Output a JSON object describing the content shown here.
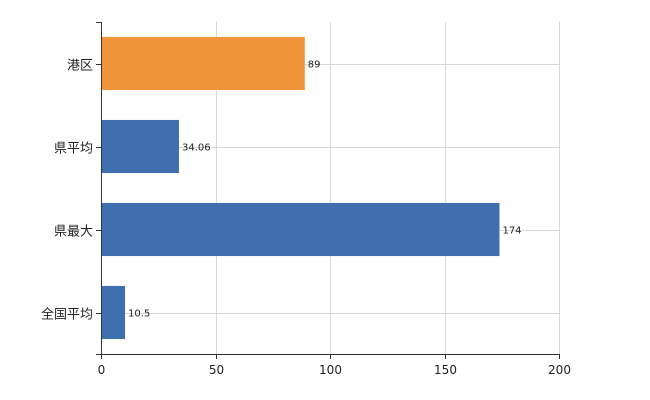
{
  "chart_data": {
    "type": "bar",
    "orientation": "horizontal",
    "categories": [
      "港区",
      "県平均",
      "県最大",
      "全国平均"
    ],
    "values": [
      89,
      34.06,
      174,
      10.5
    ],
    "value_labels": [
      "89",
      "34.06",
      "174",
      "10.5"
    ],
    "bar_colors": [
      "#f0953a",
      "#3f6faf",
      "#3f6faf",
      "#3f6faf"
    ],
    "xlim": [
      0,
      200
    ],
    "xticks": [
      0,
      50,
      100,
      150,
      200
    ],
    "xtick_labels": [
      "0",
      "50",
      "100",
      "150",
      "200"
    ],
    "grid": true,
    "grid_color": "#d9d9d9",
    "axis_color": "#333333"
  }
}
